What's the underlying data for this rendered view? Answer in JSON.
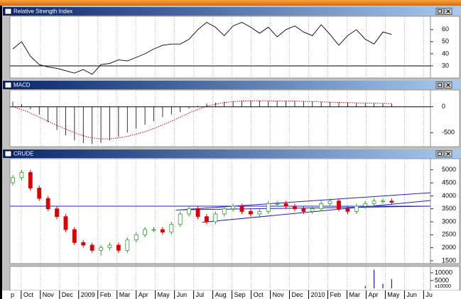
{
  "chart_data": [
    {
      "type": "line",
      "title": "Relative Strength Index",
      "color": "#000000",
      "values": [
        44,
        50,
        38,
        31,
        29,
        28,
        26,
        24,
        27,
        23,
        31,
        32,
        35,
        34,
        37,
        40,
        44,
        47,
        48,
        48,
        52,
        60,
        66,
        62,
        55,
        63,
        66,
        62,
        57,
        62,
        54,
        60,
        63,
        58,
        55,
        64,
        56,
        47,
        55,
        60,
        52,
        48,
        58,
        56
      ],
      "ylim": [
        20,
        71
      ],
      "yticks": [
        30,
        40,
        50,
        60
      ],
      "hline": 30
    },
    {
      "type": "macd",
      "title": "MACD",
      "color": "#000000",
      "signal_color": "#cc0000",
      "values": [
        100,
        50,
        -50,
        -150,
        -300,
        -450,
        -550,
        -650,
        -700,
        -720,
        -700,
        -650,
        -580,
        -500,
        -420,
        -350,
        -280,
        -200,
        -150,
        -100,
        -30,
        20,
        60,
        80,
        100,
        110,
        120,
        120,
        115,
        110,
        110,
        115,
        120,
        110,
        100,
        95,
        90,
        85,
        80,
        75,
        75,
        70,
        65,
        60
      ],
      "signal": [
        0,
        -50,
        -120,
        -200,
        -280,
        -360,
        -430,
        -500,
        -560,
        -600,
        -620,
        -620,
        -600,
        -570,
        -530,
        -480,
        -420,
        -350,
        -280,
        -200,
        -120,
        -50,
        10,
        50,
        80,
        100,
        110,
        115,
        115,
        115,
        110,
        110,
        110,
        105,
        100,
        95,
        90,
        85,
        80,
        75,
        72,
        70,
        66,
        62
      ],
      "ylim": [
        -770,
        324
      ],
      "yticks": [
        0,
        -500
      ],
      "hline": 0
    },
    {
      "type": "candlestick",
      "title": "CRUDE",
      "up_color": "#2e9e2e",
      "down_color": "#dd0000",
      "line_color": "#2020c0",
      "open": [
        4500,
        4700,
        4900,
        4300,
        3900,
        3500,
        3200,
        2700,
        2200,
        2100,
        1900,
        2000,
        2100,
        1900,
        2300,
        2500,
        2700,
        2700,
        2600,
        2900,
        3300,
        3500,
        3200,
        3000,
        3300,
        3500,
        3600,
        3400,
        3300,
        3400,
        3700,
        3700,
        3600,
        3500,
        3400,
        3500,
        3700,
        3800,
        3500,
        3400,
        3600,
        3700,
        3800,
        3800
      ],
      "high": [
        4800,
        5000,
        5000,
        4400,
        4000,
        3600,
        3300,
        2800,
        2300,
        2200,
        2100,
        2200,
        2200,
        2400,
        2600,
        2800,
        2800,
        2800,
        3000,
        3400,
        3600,
        3600,
        3300,
        3400,
        3600,
        3700,
        3700,
        3500,
        3500,
        3800,
        3800,
        3800,
        3700,
        3600,
        3600,
        3800,
        3900,
        3900,
        3600,
        3700,
        3800,
        3900,
        3900,
        3900
      ],
      "low": [
        4400,
        4600,
        4200,
        3800,
        3400,
        3100,
        2600,
        2100,
        2000,
        1800,
        1700,
        1900,
        1800,
        1800,
        2200,
        2400,
        2600,
        2500,
        2500,
        2800,
        3200,
        3100,
        2900,
        2900,
        3200,
        3400,
        3300,
        3200,
        3200,
        3300,
        3600,
        3500,
        3400,
        3300,
        3300,
        3400,
        3600,
        3400,
        3300,
        3300,
        3500,
        3600,
        3700,
        3650
      ],
      "close": [
        4700,
        4900,
        4300,
        3900,
        3500,
        3200,
        2700,
        2200,
        2100,
        1900,
        2000,
        2100,
        1900,
        2300,
        2500,
        2700,
        2700,
        2600,
        2900,
        3300,
        3500,
        3200,
        3000,
        3300,
        3500,
        3600,
        3400,
        3300,
        3400,
        3700,
        3700,
        3600,
        3500,
        3400,
        3500,
        3700,
        3800,
        3500,
        3400,
        3600,
        3700,
        3800,
        3800,
        3750
      ],
      "ylim": [
        1390,
        5430
      ],
      "yticks": [
        1500,
        2000,
        2500,
        3000,
        3500,
        4000,
        4500,
        5000
      ],
      "hline": 3600,
      "trendlines": [
        {
          "x": [
            37,
            94.8
          ],
          "y": [
            3450,
            4120
          ]
        },
        {
          "x": [
            43,
            94.8
          ],
          "y": [
            2980,
            3820
          ]
        },
        {
          "x": [
            38,
            94.8
          ],
          "y": [
            3460,
            3600
          ]
        }
      ]
    },
    {
      "type": "bar",
      "color": "#2020c0",
      "x": [
        0,
        2,
        4,
        6,
        8,
        10,
        12,
        14,
        16,
        18,
        20,
        22,
        24,
        26,
        28,
        30,
        32,
        34,
        36,
        38,
        40,
        42,
        44,
        46,
        48,
        50,
        52,
        54,
        56,
        58,
        60,
        62,
        64,
        66,
        68,
        70,
        72,
        74,
        76,
        78,
        80,
        82,
        84,
        86
      ],
      "values": [
        0,
        0,
        0,
        0,
        0,
        0,
        0,
        0,
        0,
        0,
        0,
        0,
        0,
        0,
        0,
        0,
        0,
        0,
        0,
        0,
        0,
        0,
        0,
        0,
        0,
        0,
        0,
        0,
        0,
        0,
        0,
        0,
        0,
        0,
        0,
        0,
        0,
        0,
        0,
        0,
        1500,
        12000,
        3000,
        6000
      ],
      "ylim": [
        -1360,
        14090
      ],
      "yticks": [
        10000,
        5000
      ],
      "y_unit": "x10000",
      "xlim": [
        -0.65,
        94.8
      ],
      "xticks": [
        {
          "value": -2.45,
          "label": "p"
        },
        {
          "value": 1.9,
          "label": "Oct"
        },
        {
          "value": 6.25,
          "label": "Nov"
        },
        {
          "value": 10.6,
          "label": "Dec"
        },
        {
          "value": 14.95,
          "label": "2009"
        },
        {
          "value": 19.3,
          "label": "Feb"
        },
        {
          "value": 23.65,
          "label": "Mar"
        },
        {
          "value": 28,
          "label": "Apr"
        },
        {
          "value": 32.35,
          "label": "May"
        },
        {
          "value": 36.7,
          "label": "Jun"
        },
        {
          "value": 41.05,
          "label": "Jul"
        },
        {
          "value": 45.4,
          "label": "Aug"
        },
        {
          "value": 49.75,
          "label": "Sep"
        },
        {
          "value": 54.1,
          "label": "Oct"
        },
        {
          "value": 58.45,
          "label": "Nov"
        },
        {
          "value": 62.8,
          "label": "Dec"
        },
        {
          "value": 67.15,
          "label": "2010"
        },
        {
          "value": 71.5,
          "label": "Feb"
        },
        {
          "value": 75.85,
          "label": "Mar"
        },
        {
          "value": 80.2,
          "label": "Apr"
        },
        {
          "value": 84.55,
          "label": "May"
        },
        {
          "value": 88.9,
          "label": "Jun"
        },
        {
          "value": 93.25,
          "label": "Ju"
        }
      ]
    }
  ]
}
